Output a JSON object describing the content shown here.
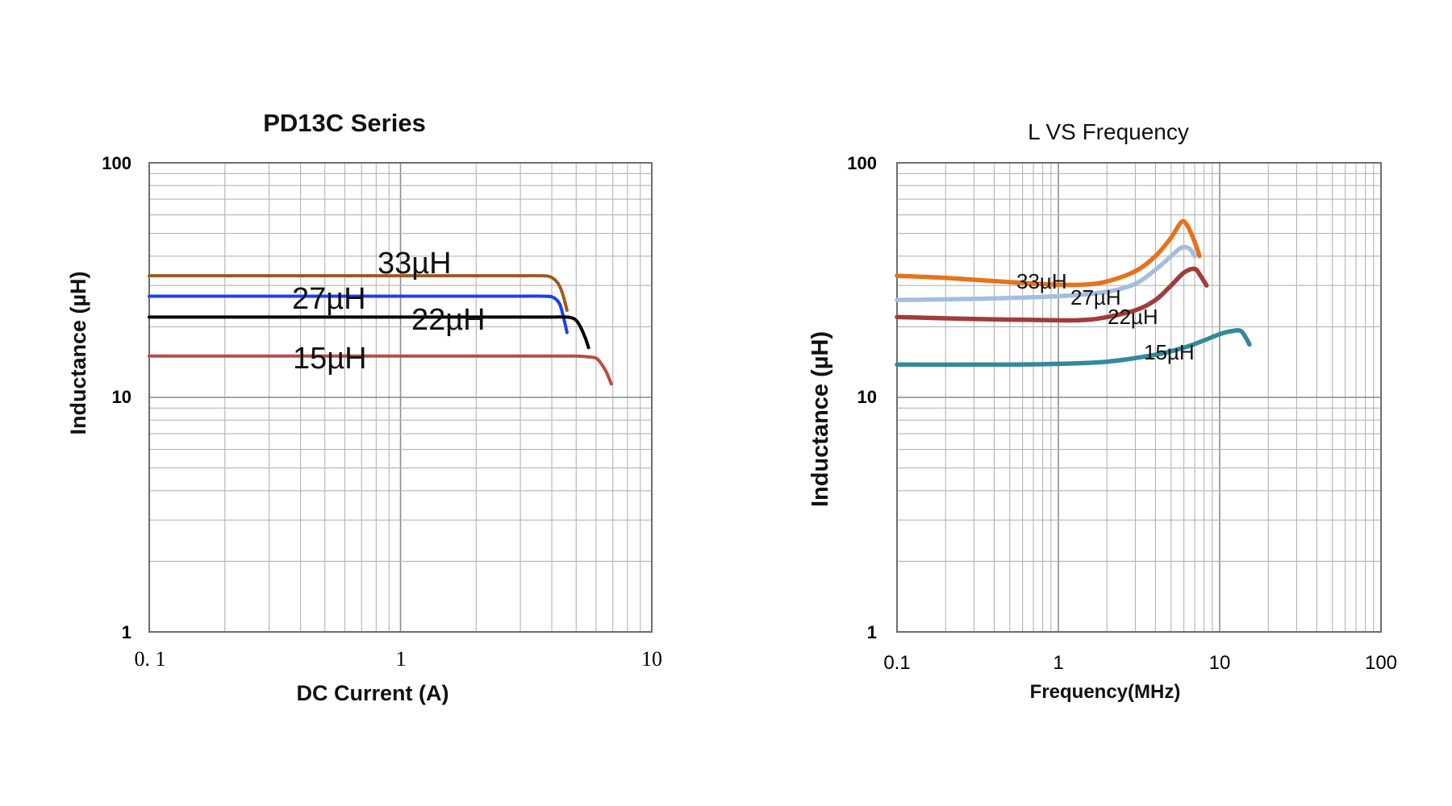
{
  "chart_data": [
    {
      "type": "line",
      "title": "PD13C Series",
      "xlabel": "DC Current (A)",
      "ylabel": "Inductance (µH)",
      "x_scale": "log",
      "y_scale": "log",
      "xlim": [
        0.1,
        10
      ],
      "ylim": [
        1,
        100
      ],
      "x_ticks": [
        "0. 1",
        "1",
        "10"
      ],
      "y_ticks": [
        "100",
        "10",
        "1"
      ],
      "grid": true,
      "series": [
        {
          "name": "33µH",
          "color": "#9a5a1e",
          "x": [
            0.1,
            1,
            2,
            3,
            3.5,
            3.9,
            4.2,
            4.4,
            4.6
          ],
          "y": [
            33,
            33,
            33,
            33,
            33,
            32.8,
            31,
            28,
            23.5
          ]
        },
        {
          "name": "27µH",
          "color": "#1c3ff0",
          "x": [
            0.1,
            1,
            2,
            3,
            3.7,
            4.05,
            4.3,
            4.45,
            4.6
          ],
          "y": [
            27,
            27,
            27,
            27,
            27,
            26.7,
            25,
            22,
            18.9
          ]
        },
        {
          "name": "22µH",
          "color": "#000000",
          "x": [
            0.1,
            1,
            2,
            3,
            4,
            4.6,
            4.95,
            5.2,
            5.45,
            5.6
          ],
          "y": [
            22,
            22,
            22,
            22,
            22,
            22,
            21.5,
            20,
            17.8,
            16.3
          ]
        },
        {
          "name": "15µH",
          "color": "#b84d49",
          "x": [
            0.1,
            1,
            2,
            3,
            4,
            5,
            5.5,
            6,
            6.3,
            6.6,
            6.9
          ],
          "y": [
            15,
            15,
            15,
            15,
            15,
            15,
            14.9,
            14.7,
            13.9,
            12.8,
            11.4
          ]
        }
      ]
    },
    {
      "type": "line",
      "title": "L VS Frequency",
      "xlabel": "Frequency(MHz)",
      "ylabel": "Inductance (µH)",
      "x_scale": "log",
      "y_scale": "log",
      "xlim": [
        0.1,
        100
      ],
      "ylim": [
        1,
        100
      ],
      "x_ticks": [
        "0.1",
        "1",
        "10",
        "100"
      ],
      "y_ticks": [
        "100",
        "10",
        "1"
      ],
      "grid": true,
      "series": [
        {
          "name": "33µH",
          "color": "#e8721a",
          "x": [
            0.1,
            0.2,
            0.5,
            1,
            1.5,
            2,
            3,
            4,
            5,
            5.8,
            6.3,
            7,
            7.5
          ],
          "y": [
            33,
            32.3,
            31,
            30.2,
            30.3,
            31.2,
            34.5,
            40,
            48,
            56,
            54,
            46,
            40
          ]
        },
        {
          "name": "27µH",
          "color": "#a5bde0",
          "x": [
            0.1,
            0.3,
            1,
            2,
            3,
            4,
            5,
            5.8,
            6.5,
            7
          ],
          "y": [
            26,
            26.3,
            27,
            28.2,
            30.5,
            35,
            40,
            43.5,
            43,
            40
          ]
        },
        {
          "name": "22µH",
          "color": "#a03c3a",
          "x": [
            0.1,
            0.3,
            1,
            1.5,
            2,
            3,
            4,
            5,
            6,
            7,
            7.6,
            8.3
          ],
          "y": [
            22,
            21.6,
            21.3,
            21.4,
            22,
            23.5,
            26,
            30,
            34,
            35.3,
            33,
            30
          ]
        },
        {
          "name": "15µH",
          "color": "#318a9a",
          "x": [
            0.1,
            0.5,
            1,
            2,
            4,
            6,
            8,
            10,
            12,
            13.5,
            14.5,
            15.3
          ],
          "y": [
            13.8,
            13.8,
            13.9,
            14.2,
            15.2,
            16.3,
            17.5,
            18.6,
            19.2,
            19.2,
            18,
            16.8
          ]
        }
      ]
    }
  ]
}
